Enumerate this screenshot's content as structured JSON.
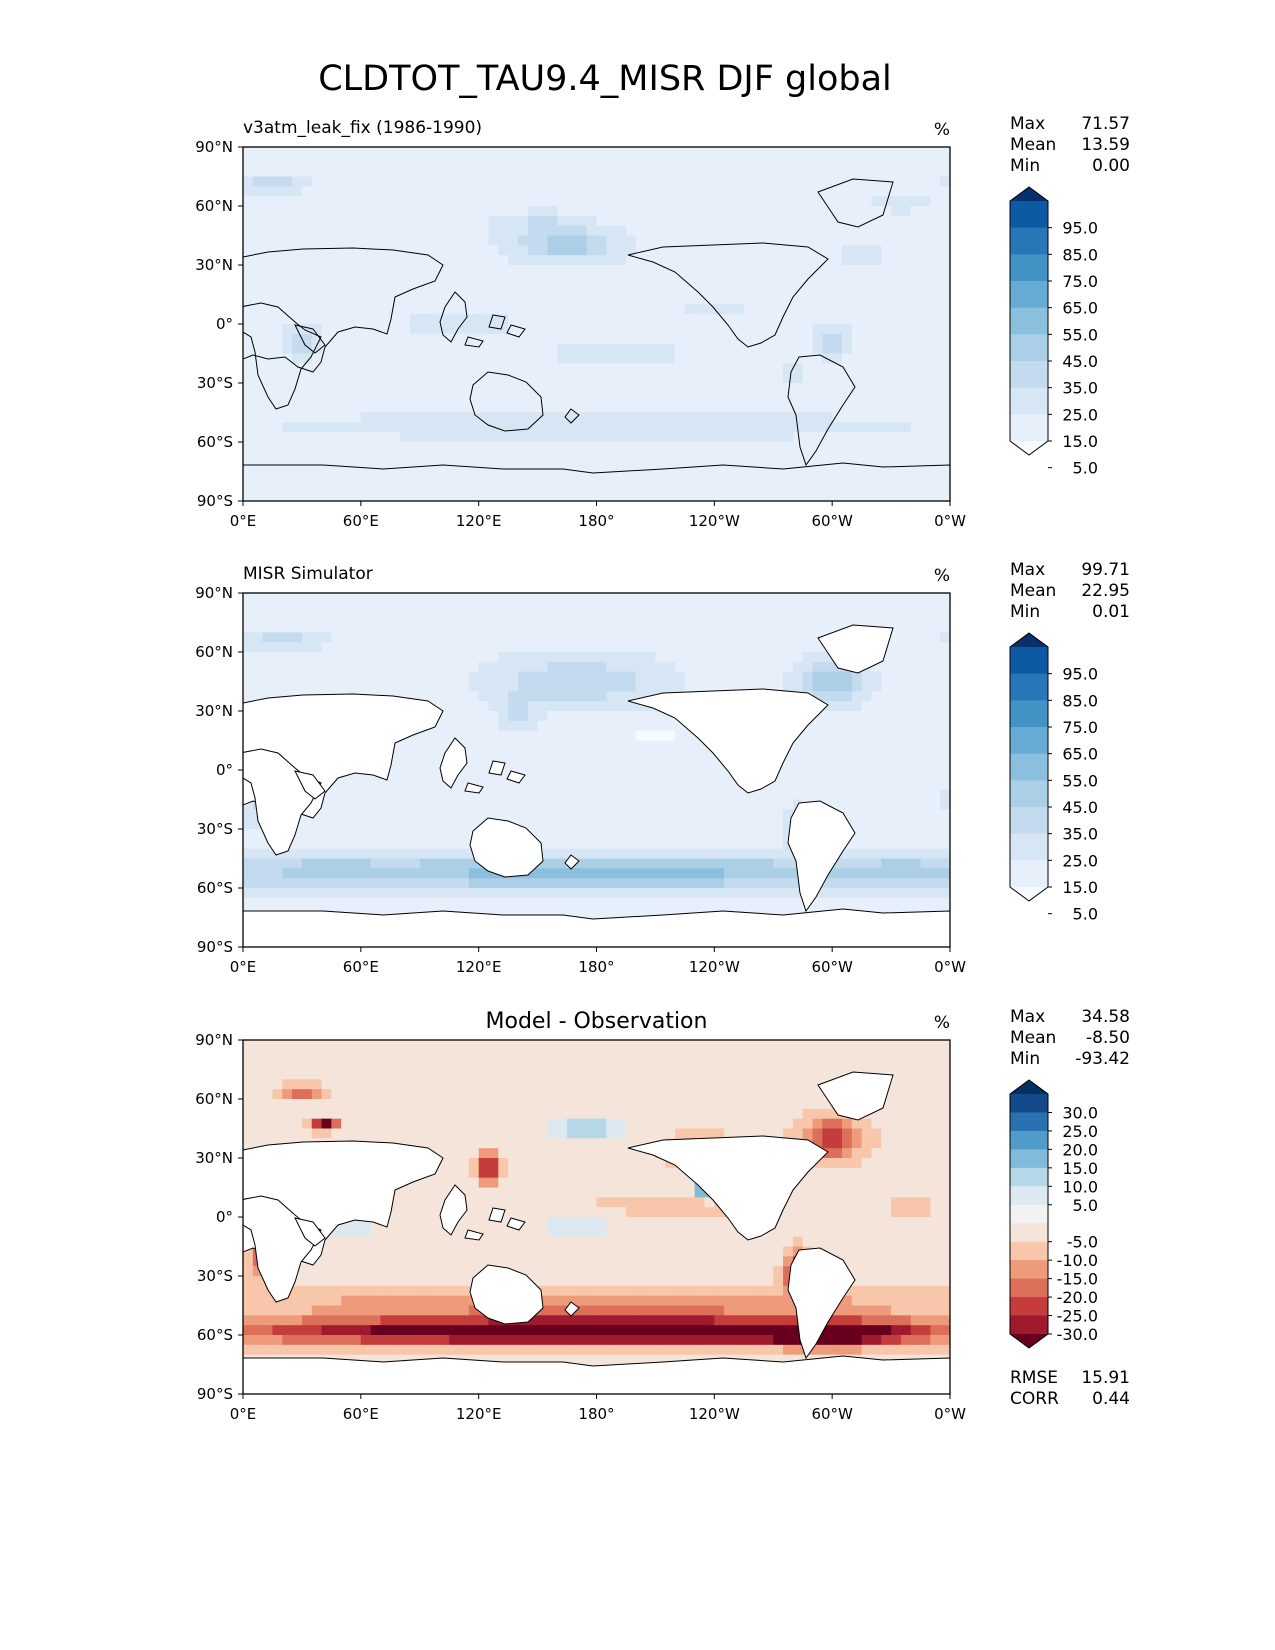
{
  "figure_title": "CLDTOT_TAU9.4_MISR DJF global",
  "colors": {
    "seq": [
      "#f7fbff",
      "#e7f0fa",
      "#d6e6f4",
      "#c4daee",
      "#abcfe6",
      "#8abfdd",
      "#66abd4",
      "#4392c6",
      "#2676b8",
      "#0d5aa4",
      "#08306b"
    ],
    "div": [
      "#67001f",
      "#9f1a2c",
      "#c43c3c",
      "#dc6f59",
      "#ee9b7b",
      "#f8c7ab",
      "#f5e4d9",
      "#f2f2f2",
      "#dce9f1",
      "#b6d7e8",
      "#82bbd9",
      "#4f9bc9",
      "#2a71b1",
      "#124a8a",
      "#053061"
    ],
    "land": "#ffffff",
    "coast": "#000000"
  },
  "chart_data": [
    {
      "type": "heatmap",
      "panel_title": "v3atm_leak_fix (1986-1990)",
      "units": "%",
      "stats": [
        {
          "label": "Max",
          "value": "71.57"
        },
        {
          "label": "Mean",
          "value": "13.59"
        },
        {
          "label": "Min",
          "value": "0.00"
        }
      ],
      "colorbar": {
        "levels": [
          "95.0",
          "85.0",
          "75.0",
          "65.0",
          "55.0",
          "45.0",
          "35.0",
          "25.0",
          "15.0",
          "5.0"
        ],
        "range": [
          0,
          100
        ],
        "extend": "both"
      },
      "x_ticks": [
        "0°E",
        "60°E",
        "120°E",
        "180°",
        "120°W",
        "60°W",
        "0°W"
      ],
      "y_ticks": [
        "90°N",
        "60°N",
        "30°N",
        "0°",
        "30°S",
        "60°S",
        "90°S"
      ],
      "xlim": [
        0,
        360
      ],
      "ylim": [
        -90,
        90
      ],
      "field": {
        "base": 9,
        "features": [
          {
            "lon": 165,
            "lat": 40,
            "rlon": 30,
            "rlat": 9,
            "amp": 30
          },
          {
            "lon": 150,
            "lat": 52,
            "rlon": 25,
            "rlat": 6,
            "amp": 14
          },
          {
            "lon": 15,
            "lat": 72,
            "rlon": 20,
            "rlat": 5,
            "amp": 20
          },
          {
            "lon": 335,
            "lat": 62,
            "rlon": 15,
            "rlat": 5,
            "amp": 14
          },
          {
            "lon": 315,
            "lat": 35,
            "rlon": 20,
            "rlat": 6,
            "amp": 10
          },
          {
            "lon": 30,
            "lat": -8,
            "rlon": 9,
            "rlat": 9,
            "amp": 24
          },
          {
            "lon": 300,
            "lat": -8,
            "rlon": 10,
            "rlat": 9,
            "amp": 24
          },
          {
            "lon": 280,
            "lat": -25,
            "rlon": 5,
            "rlat": 8,
            "amp": 16
          },
          {
            "lon": 110,
            "lat": 0,
            "rlon": 35,
            "rlat": 8,
            "amp": 12
          },
          {
            "lon": 190,
            "lat": -15,
            "rlon": 45,
            "rlat": 7,
            "amp": 10
          },
          {
            "lon": 180,
            "lat": -52,
            "rlon": 180,
            "rlat": 8,
            "amp": 13
          },
          {
            "lon": 240,
            "lat": 8,
            "rlon": 40,
            "rlat": 3,
            "amp": 7
          }
        ]
      }
    },
    {
      "type": "heatmap",
      "panel_title": "MISR Simulator",
      "units": "%",
      "stats": [
        {
          "label": "Max",
          "value": "99.71"
        },
        {
          "label": "Mean",
          "value": "22.95"
        },
        {
          "label": "Min",
          "value": "0.01"
        }
      ],
      "colorbar": {
        "levels": [
          "95.0",
          "85.0",
          "75.0",
          "65.0",
          "55.0",
          "45.0",
          "35.0",
          "25.0",
          "15.0",
          "5.0"
        ],
        "range": [
          0,
          100
        ],
        "extend": "both"
      },
      "x_ticks": [
        "0°E",
        "60°E",
        "120°E",
        "180°",
        "120°W",
        "60°W",
        "0°W"
      ],
      "y_ticks": [
        "90°N",
        "60°N",
        "30°N",
        "0°",
        "30°S",
        "60°S",
        "90°S"
      ],
      "xlim": [
        0,
        360
      ],
      "ylim": [
        -90,
        90
      ],
      "field": {
        "base": 12,
        "features": [
          {
            "lon": 180,
            "lat": -52,
            "rlon": 180,
            "rlat": 9,
            "amp": 38
          },
          {
            "lon": 340,
            "lat": -52,
            "rlon": 25,
            "rlat": 9,
            "amp": 14
          },
          {
            "lon": 40,
            "lat": -50,
            "rlon": 25,
            "rlat": 8,
            "amp": 10
          },
          {
            "lon": 170,
            "lat": 45,
            "rlon": 40,
            "rlat": 12,
            "amp": 22
          },
          {
            "lon": 300,
            "lat": 45,
            "rlon": 15,
            "rlat": 10,
            "amp": 34
          },
          {
            "lon": 140,
            "lat": 30,
            "rlon": 8,
            "rlat": 8,
            "amp": 20
          },
          {
            "lon": 20,
            "lat": 66,
            "rlon": 20,
            "rlat": 4,
            "amp": 18
          },
          {
            "lon": 282,
            "lat": -30,
            "rlon": 5,
            "rlat": 10,
            "amp": 20
          },
          {
            "lon": 10,
            "lat": -15,
            "rlon": 10,
            "rlat": 12,
            "amp": 18
          },
          {
            "lon": 210,
            "lat": 18,
            "rlon": 30,
            "rlat": 5,
            "amp": -8
          },
          {
            "lon": 230,
            "lat": -20,
            "rlon": 25,
            "rlat": 8,
            "amp": -5
          }
        ]
      }
    },
    {
      "type": "heatmap",
      "panel_title": "Model - Observation",
      "units": "%",
      "stats": [
        {
          "label": "Max",
          "value": "34.58"
        },
        {
          "label": "Mean",
          "value": "-8.50"
        },
        {
          "label": "Min",
          "value": "-93.42"
        }
      ],
      "colorbar": {
        "levels": [
          "30.0",
          "25.0",
          "20.0",
          "15.0",
          "10.0",
          "5.0",
          "-5.0",
          "-10.0",
          "-15.0",
          "-20.0",
          "-25.0",
          "-30.0"
        ],
        "range": [
          -35,
          35
        ],
        "extend": "both"
      },
      "metrics": [
        {
          "label": "RMSE",
          "value": "15.91"
        },
        {
          "label": "CORR",
          "value": "0.44"
        }
      ],
      "x_ticks": [
        "0°E",
        "60°E",
        "120°E",
        "180°",
        "120°W",
        "60°W",
        "0°W"
      ],
      "y_ticks": [
        "90°N",
        "60°N",
        "30°N",
        "0°",
        "30°S",
        "60°S",
        "90°S"
      ],
      "xlim": [
        0,
        360
      ],
      "ylim": [
        -90,
        90
      ],
      "field": {
        "base": -3,
        "features": [
          {
            "lon": 180,
            "lat": -58,
            "rlon": 180,
            "rlat": 7,
            "amp": -40
          },
          {
            "lon": 180,
            "lat": -44,
            "rlon": 180,
            "rlat": 7,
            "amp": -12
          },
          {
            "lon": 300,
            "lat": -60,
            "rlon": 30,
            "rlat": 6,
            "amp": -20
          },
          {
            "lon": 10,
            "lat": -20,
            "rlon": 7,
            "rlat": 12,
            "amp": -18
          },
          {
            "lon": 282,
            "lat": -28,
            "rlon": 6,
            "rlat": 10,
            "amp": -28
          },
          {
            "lon": 125,
            "lat": 25,
            "rlon": 5,
            "rlat": 7,
            "amp": -32
          },
          {
            "lon": 42,
            "lat": 47,
            "rlon": 6,
            "rlat": 3,
            "amp": -35
          },
          {
            "lon": 30,
            "lat": 64,
            "rlon": 10,
            "rlat": 3,
            "amp": -20
          },
          {
            "lon": 300,
            "lat": 40,
            "rlon": 15,
            "rlat": 10,
            "amp": -22
          },
          {
            "lon": 215,
            "lat": 5,
            "rlon": 40,
            "rlat": 2,
            "amp": -30
          },
          {
            "lon": 340,
            "lat": 5,
            "rlon": 12,
            "rlat": 2,
            "amp": -18
          },
          {
            "lon": 175,
            "lat": 45,
            "rlon": 25,
            "rlat": 6,
            "amp": 18
          },
          {
            "lon": 235,
            "lat": 15,
            "rlon": 6,
            "rlat": 5,
            "amp": 30
          },
          {
            "lon": 55,
            "lat": -5,
            "rlon": 20,
            "rlat": 8,
            "amp": 12
          },
          {
            "lon": 170,
            "lat": -5,
            "rlon": 25,
            "rlat": 8,
            "amp": 14
          },
          {
            "lon": 230,
            "lat": 35,
            "rlon": 15,
            "rlat": 8,
            "amp": -10
          }
        ]
      }
    }
  ]
}
